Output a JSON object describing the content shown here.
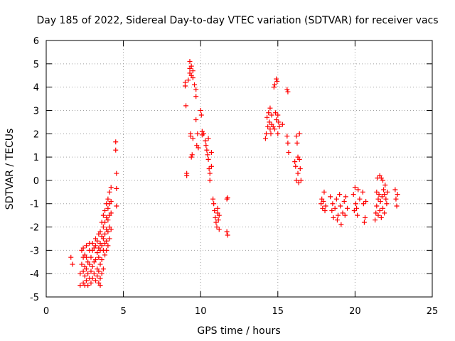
{
  "chart_data": {
    "type": "scatter",
    "title": "Day 185 of 2022, Sidereal Day-to-day VTEC variation (SDTVAR) for receiver vacs",
    "xlabel": "GPS time / hours",
    "ylabel": "SDTVAR / TECUs",
    "xlim": [
      0,
      25
    ],
    "ylim": [
      -5,
      6
    ],
    "xticks": [
      0,
      5,
      10,
      15,
      20,
      25
    ],
    "yticks": [
      -5,
      -4,
      -3,
      -2,
      -1,
      0,
      1,
      2,
      3,
      4,
      5,
      6
    ],
    "grid": true,
    "marker": "+",
    "color": "#ff0000",
    "series": [
      {
        "name": "vacs",
        "points": [
          [
            1.6,
            -3.3
          ],
          [
            1.7,
            -3.6
          ],
          [
            2.2,
            -4.5
          ],
          [
            2.2,
            -4.0
          ],
          [
            2.3,
            -3.6
          ],
          [
            2.3,
            -3.0
          ],
          [
            2.4,
            -4.4
          ],
          [
            2.4,
            -3.9
          ],
          [
            2.4,
            -3.3
          ],
          [
            2.4,
            -2.9
          ],
          [
            2.5,
            -4.5
          ],
          [
            2.5,
            -4.1
          ],
          [
            2.5,
            -3.7
          ],
          [
            2.5,
            -3.2
          ],
          [
            2.6,
            -4.3
          ],
          [
            2.6,
            -3.8
          ],
          [
            2.6,
            -3.3
          ],
          [
            2.6,
            -2.8
          ],
          [
            2.7,
            -4.5
          ],
          [
            2.7,
            -4.0
          ],
          [
            2.7,
            -3.5
          ],
          [
            2.8,
            -4.2
          ],
          [
            2.8,
            -3.6
          ],
          [
            2.8,
            -3.0
          ],
          [
            2.8,
            -2.7
          ],
          [
            2.9,
            -4.4
          ],
          [
            2.9,
            -3.9
          ],
          [
            2.9,
            -3.3
          ],
          [
            3.0,
            -4.2
          ],
          [
            3.0,
            -3.7
          ],
          [
            3.0,
            -3.0
          ],
          [
            3.0,
            -2.7
          ],
          [
            3.1,
            -4.0
          ],
          [
            3.1,
            -3.5
          ],
          [
            3.1,
            -2.9
          ],
          [
            3.2,
            -4.3
          ],
          [
            3.2,
            -3.4
          ],
          [
            3.2,
            -2.8
          ],
          [
            3.2,
            -2.5
          ],
          [
            3.3,
            -4.1
          ],
          [
            3.3,
            -3.8
          ],
          [
            3.3,
            -3.1
          ],
          [
            3.3,
            -2.6
          ],
          [
            3.4,
            -4.4
          ],
          [
            3.4,
            -3.9
          ],
          [
            3.4,
            -3.3
          ],
          [
            3.4,
            -2.9
          ],
          [
            3.4,
            -2.3
          ],
          [
            3.5,
            -4.5
          ],
          [
            3.5,
            -4.2
          ],
          [
            3.5,
            -3.6
          ],
          [
            3.5,
            -3.0
          ],
          [
            3.5,
            -2.7
          ],
          [
            3.5,
            -2.2
          ],
          [
            3.6,
            -4.0
          ],
          [
            3.6,
            -3.4
          ],
          [
            3.6,
            -2.8
          ],
          [
            3.6,
            -2.4
          ],
          [
            3.6,
            -1.8
          ],
          [
            3.7,
            -3.8
          ],
          [
            3.7,
            -3.0
          ],
          [
            3.7,
            -2.5
          ],
          [
            3.7,
            -2.0
          ],
          [
            3.7,
            -1.5
          ],
          [
            3.8,
            -3.2
          ],
          [
            3.8,
            -2.7
          ],
          [
            3.8,
            -2.3
          ],
          [
            3.8,
            -1.8
          ],
          [
            3.8,
            -1.3
          ],
          [
            3.9,
            -3.0
          ],
          [
            3.9,
            -2.6
          ],
          [
            3.9,
            -2.1
          ],
          [
            3.9,
            -1.6
          ],
          [
            3.9,
            -1.0
          ],
          [
            4.0,
            -2.8
          ],
          [
            4.0,
            -2.2
          ],
          [
            4.0,
            -1.7
          ],
          [
            4.0,
            -1.2
          ],
          [
            4.0,
            -0.8
          ],
          [
            4.1,
            -2.5
          ],
          [
            4.1,
            -2.0
          ],
          [
            4.1,
            -1.5
          ],
          [
            4.1,
            -1.0
          ],
          [
            4.1,
            -0.5
          ],
          [
            4.2,
            -2.1
          ],
          [
            4.2,
            -1.4
          ],
          [
            4.2,
            -0.9
          ],
          [
            4.2,
            -0.3
          ],
          [
            4.5,
            1.65
          ],
          [
            4.5,
            1.3
          ],
          [
            4.55,
            0.3
          ],
          [
            4.55,
            -0.35
          ],
          [
            4.55,
            -1.1
          ],
          [
            9.0,
            4.2
          ],
          [
            9.0,
            4.05
          ],
          [
            9.05,
            3.2
          ],
          [
            9.1,
            0.3
          ],
          [
            9.1,
            0.2
          ],
          [
            9.2,
            4.3
          ],
          [
            9.3,
            5.1
          ],
          [
            9.3,
            4.8
          ],
          [
            9.3,
            4.6
          ],
          [
            9.35,
            2.0
          ],
          [
            9.35,
            1.9
          ],
          [
            9.4,
            4.9
          ],
          [
            9.4,
            4.5
          ],
          [
            9.4,
            1.0
          ],
          [
            9.45,
            1.1
          ],
          [
            9.5,
            4.7
          ],
          [
            9.5,
            4.4
          ],
          [
            9.5,
            1.8
          ],
          [
            9.6,
            4.1
          ],
          [
            9.7,
            3.9
          ],
          [
            9.7,
            3.6
          ],
          [
            9.7,
            2.6
          ],
          [
            9.75,
            1.5
          ],
          [
            9.8,
            2.0
          ],
          [
            9.85,
            1.4
          ],
          [
            10.0,
            3.0
          ],
          [
            10.05,
            2.8
          ],
          [
            10.1,
            2.1
          ],
          [
            10.1,
            1.95
          ],
          [
            10.2,
            2.0
          ],
          [
            10.3,
            1.7
          ],
          [
            10.35,
            1.5
          ],
          [
            10.4,
            1.3
          ],
          [
            10.45,
            1.1
          ],
          [
            10.5,
            1.8
          ],
          [
            10.5,
            0.9
          ],
          [
            10.55,
            0.5
          ],
          [
            10.6,
            0.3
          ],
          [
            10.6,
            0.0
          ],
          [
            10.7,
            1.2
          ],
          [
            10.7,
            0.6
          ],
          [
            10.8,
            -0.8
          ],
          [
            10.85,
            -1.0
          ],
          [
            10.9,
            -1.3
          ],
          [
            10.95,
            -1.6
          ],
          [
            11.0,
            -1.8
          ],
          [
            11.05,
            -2.0
          ],
          [
            11.1,
            -1.4
          ],
          [
            11.15,
            -1.7
          ],
          [
            11.2,
            -2.1
          ],
          [
            11.1,
            -1.2
          ],
          [
            11.2,
            -1.5
          ],
          [
            11.7,
            -0.8
          ],
          [
            11.75,
            -0.75
          ],
          [
            11.7,
            -2.2
          ],
          [
            11.75,
            -2.35
          ],
          [
            14.2,
            1.8
          ],
          [
            14.25,
            2.0
          ],
          [
            14.3,
            2.7
          ],
          [
            14.35,
            2.3
          ],
          [
            14.4,
            2.9
          ],
          [
            14.45,
            2.5
          ],
          [
            14.5,
            2.2
          ],
          [
            14.5,
            3.1
          ],
          [
            14.55,
            2.0
          ],
          [
            14.6,
            2.4
          ],
          [
            14.6,
            2.8
          ],
          [
            14.7,
            2.3
          ],
          [
            14.75,
            4.0
          ],
          [
            14.8,
            2.2
          ],
          [
            14.8,
            4.1
          ],
          [
            14.85,
            2.9
          ],
          [
            14.9,
            4.35
          ],
          [
            14.9,
            2.6
          ],
          [
            14.95,
            4.25
          ],
          [
            15.0,
            2.0
          ],
          [
            15.0,
            2.8
          ],
          [
            15.05,
            2.5
          ],
          [
            15.1,
            2.3
          ],
          [
            15.3,
            2.4
          ],
          [
            15.6,
            3.9
          ],
          [
            15.65,
            3.8
          ],
          [
            15.6,
            1.9
          ],
          [
            15.65,
            1.6
          ],
          [
            15.7,
            1.2
          ],
          [
            16.1,
            0.8
          ],
          [
            16.15,
            0.6
          ],
          [
            16.2,
            1.9
          ],
          [
            16.2,
            0.0
          ],
          [
            16.25,
            1.6
          ],
          [
            16.3,
            1.0
          ],
          [
            16.3,
            0.3
          ],
          [
            16.35,
            -0.1
          ],
          [
            16.4,
            2.0
          ],
          [
            16.4,
            0.9
          ],
          [
            16.45,
            0.5
          ],
          [
            16.5,
            0.0
          ],
          [
            17.8,
            -1.0
          ],
          [
            17.85,
            -0.8
          ],
          [
            17.9,
            -1.2
          ],
          [
            17.95,
            -0.9
          ],
          [
            18.0,
            -0.5
          ],
          [
            18.05,
            -1.3
          ],
          [
            18.1,
            -1.1
          ],
          [
            18.4,
            -0.7
          ],
          [
            18.5,
            -1.3
          ],
          [
            18.55,
            -1.0
          ],
          [
            18.6,
            -1.6
          ],
          [
            18.7,
            -1.2
          ],
          [
            18.8,
            -0.8
          ],
          [
            18.85,
            -1.7
          ],
          [
            18.9,
            -1.5
          ],
          [
            19.0,
            -0.6
          ],
          [
            19.05,
            -1.1
          ],
          [
            19.1,
            -1.9
          ],
          [
            19.2,
            -1.4
          ],
          [
            19.3,
            -0.9
          ],
          [
            19.35,
            -1.5
          ],
          [
            19.4,
            -0.7
          ],
          [
            19.5,
            -1.2
          ],
          [
            19.9,
            -0.6
          ],
          [
            19.95,
            -1.3
          ],
          [
            20.0,
            -0.3
          ],
          [
            20.05,
            -1.0
          ],
          [
            20.1,
            -1.2
          ],
          [
            20.15,
            -1.5
          ],
          [
            20.2,
            -0.4
          ],
          [
            20.3,
            -0.8
          ],
          [
            20.5,
            -0.5
          ],
          [
            20.55,
            -1.0
          ],
          [
            20.6,
            -1.8
          ],
          [
            20.65,
            -1.6
          ],
          [
            20.7,
            -0.9
          ],
          [
            21.3,
            -1.7
          ],
          [
            21.35,
            -1.4
          ],
          [
            21.4,
            -0.5
          ],
          [
            21.4,
            -1.1
          ],
          [
            21.45,
            0.1
          ],
          [
            21.5,
            -0.8
          ],
          [
            21.5,
            -1.5
          ],
          [
            21.55,
            -0.6
          ],
          [
            21.6,
            0.2
          ],
          [
            21.6,
            -1.3
          ],
          [
            21.65,
            -0.9
          ],
          [
            21.7,
            0.1
          ],
          [
            21.7,
            -1.6
          ],
          [
            21.75,
            -0.7
          ],
          [
            21.8,
            0.0
          ],
          [
            21.8,
            -1.2
          ],
          [
            21.85,
            -0.4
          ],
          [
            21.9,
            -0.6
          ],
          [
            21.9,
            -1.4
          ],
          [
            21.95,
            -0.2
          ],
          [
            22.0,
            -0.8
          ],
          [
            22.05,
            -1.0
          ],
          [
            22.1,
            -0.5
          ],
          [
            22.6,
            -0.4
          ],
          [
            22.65,
            -0.8
          ],
          [
            22.7,
            -1.1
          ],
          [
            22.75,
            -0.6
          ]
        ]
      }
    ]
  }
}
